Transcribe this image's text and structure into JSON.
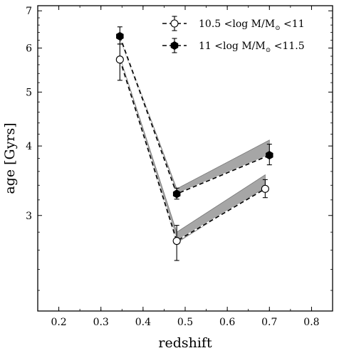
{
  "chart_data": {
    "type": "scatter",
    "xlabel": "redshift",
    "ylabel": "age [Gyrs]",
    "xlim": [
      0.15,
      0.85
    ],
    "ylim": [
      2.02,
      7.15
    ],
    "yscale": "log",
    "grid": false,
    "legend_position": "top-right",
    "x_ticks": [
      0.2,
      0.3,
      0.4,
      0.5,
      0.6,
      0.7,
      0.8
    ],
    "x_tick_labels": [
      "0.2",
      "0.3",
      "0.4",
      "0.5",
      "0.6",
      "0.7",
      "0.8"
    ],
    "y_ticks": [
      3,
      4,
      5,
      6,
      7
    ],
    "y_tick_labels": [
      "3",
      "4",
      "5",
      "6",
      "7"
    ],
    "series": [
      {
        "name": "10.5 <log M/M⊙ <11",
        "legend_parts": {
          "lead": "10.5 <log M/M",
          "sub": "⊙",
          "tail": " <11"
        },
        "marker": "open-circle",
        "x": [
          0.345,
          0.48,
          0.69
        ],
        "y": [
          5.72,
          2.7,
          3.35
        ],
        "yerr_low": [
          0.47,
          0.21,
          0.12
        ],
        "yerr_high": [
          0.38,
          0.18,
          0.13
        ],
        "model_band_upper": [
          5.78,
          2.8,
          3.55
        ],
        "model_band_lower": [
          5.7,
          2.68,
          3.37
        ]
      },
      {
        "name": "11 <log M/M⊙ <11.5",
        "legend_parts": {
          "lead": "11 <log M/M",
          "sub": "⊙",
          "tail": " <11.5"
        },
        "marker": "filled-hexagon",
        "x": [
          0.345,
          0.48,
          0.7
        ],
        "y": [
          6.3,
          3.28,
          3.85
        ],
        "yerr_low": [
          0.2,
          0.07,
          0.15
        ],
        "yerr_high": [
          0.25,
          0.08,
          0.18
        ],
        "model_band_upper": [
          6.3,
          3.35,
          4.1
        ],
        "model_band_lower": [
          6.25,
          3.28,
          3.85
        ]
      }
    ],
    "colors": {
      "band_fill": "#a6a6a6",
      "band_edge": "#777777",
      "line": "#000000",
      "open_marker_fill": "#ffffff",
      "filled_marker": "#000000"
    }
  }
}
